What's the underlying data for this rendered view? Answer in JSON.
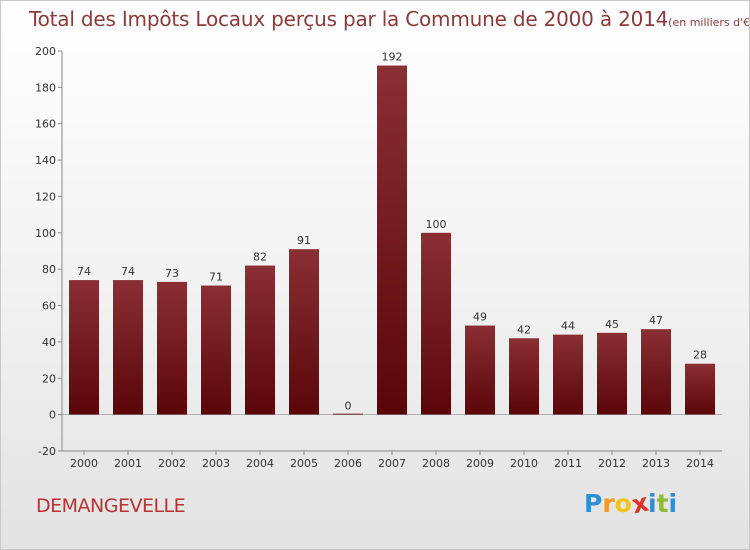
{
  "chart_data": {
    "type": "bar",
    "title": "Total des Impôts Locaux perçus par la Commune de 2000 à 2014",
    "unit_note": "(en milliers d'€)",
    "categories": [
      "2000",
      "2001",
      "2002",
      "2003",
      "2004",
      "2005",
      "2006",
      "2007",
      "2008",
      "2009",
      "2010",
      "2011",
      "2012",
      "2013",
      "2014"
    ],
    "values": [
      74,
      74,
      73,
      71,
      82,
      91,
      0,
      192,
      100,
      49,
      42,
      44,
      45,
      47,
      28
    ],
    "ylim": [
      -20,
      200
    ],
    "yticks": [
      -20,
      0,
      20,
      40,
      60,
      80,
      100,
      120,
      140,
      160,
      180,
      200
    ],
    "grid": false,
    "legend": "none",
    "bar_color": "#6e1014"
  },
  "commune": "DEMANGEVELLE",
  "logo": {
    "text": "Proxiti",
    "letters": [
      "P",
      "r",
      "o",
      "x",
      "i",
      "t",
      "i"
    ],
    "colors": [
      "#2f8fd6",
      "#f29a1d",
      "#f2c21d",
      "#e2332b",
      "#2f8fd6",
      "#8dbb2b",
      "#2f8fd6"
    ]
  }
}
